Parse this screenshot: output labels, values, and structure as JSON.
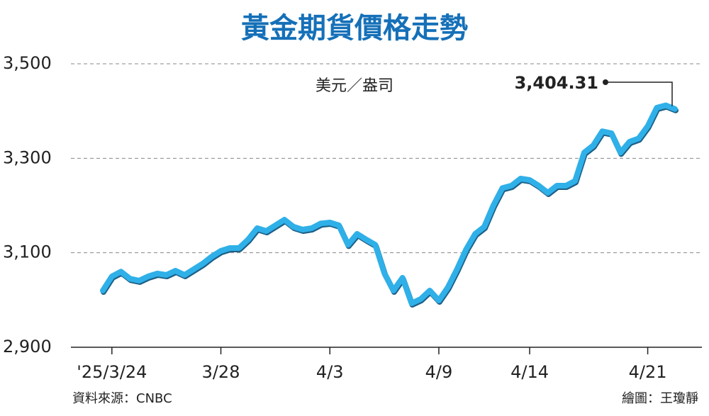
{
  "chart_data": {
    "type": "line",
    "title": "黃金期貨價格走勢",
    "unit": "美元／盎司",
    "source": "資料來源：CNBC",
    "credit": "繪圖：王瓊靜",
    "categories": [
      null,
      "'25/3/24",
      null,
      null,
      null,
      null,
      null,
      null,
      null,
      null,
      null,
      null,
      null,
      "3/28",
      null,
      null,
      null,
      null,
      null,
      null,
      null,
      null,
      null,
      null,
      null,
      "4/3",
      null,
      null,
      null,
      null,
      null,
      null,
      null,
      null,
      null,
      null,
      null,
      "4/9",
      null,
      null,
      null,
      null,
      null,
      null,
      null,
      null,
      null,
      "4/14",
      null,
      null,
      null,
      null,
      null,
      null,
      null,
      null,
      null,
      null,
      null,
      null,
      "4/21",
      null,
      null,
      null
    ],
    "series": [
      {
        "name": "黃金期貨",
        "color": "#2fb0e8",
        "values": [
          3020,
          3050,
          3060,
          3045,
          3041,
          3050,
          3056,
          3053,
          3062,
          3053,
          3065,
          3077,
          3092,
          3104,
          3110,
          3110,
          3128,
          3152,
          3146,
          3158,
          3170,
          3155,
          3149,
          3152,
          3162,
          3164,
          3158,
          3117,
          3140,
          3128,
          3117,
          3057,
          3020,
          3047,
          2993,
          3002,
          3020,
          2999,
          3027,
          3065,
          3107,
          3140,
          3155,
          3200,
          3237,
          3242,
          3257,
          3254,
          3242,
          3227,
          3242,
          3242,
          3252,
          3312,
          3327,
          3357,
          3353,
          3312,
          3335,
          3342,
          3368,
          3407,
          3412,
          3404.31
        ],
        "value_labels": [
          null,
          null,
          null,
          null,
          null,
          null,
          null,
          null,
          null,
          null,
          null,
          null,
          null,
          null,
          null,
          null,
          null,
          null,
          null,
          null,
          null,
          null,
          null,
          null,
          null,
          null,
          null,
          null,
          null,
          null,
          null,
          null,
          null,
          null,
          null,
          null,
          null,
          null,
          null,
          null,
          null,
          null,
          null,
          null,
          null,
          null,
          null,
          null,
          null,
          null,
          null,
          null,
          null,
          null,
          null,
          null,
          null,
          null,
          null,
          null,
          null,
          null,
          null,
          "3,404.31"
        ]
      }
    ],
    "ylim": [
      2900,
      3500
    ],
    "yticks": [
      {
        "value": 2900,
        "label": "2,900"
      },
      {
        "value": 3100,
        "label": "3,100"
      },
      {
        "value": 3300,
        "label": "3,300"
      },
      {
        "value": 3500,
        "label": "3,500"
      }
    ],
    "grid": true
  }
}
